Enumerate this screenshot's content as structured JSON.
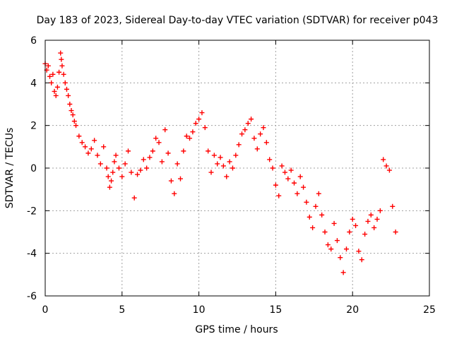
{
  "chart_data": {
    "type": "scatter",
    "title": "Day 183 of 2023, Sidereal Day-to-day VTEC variation (SDTVAR) for receiver p043",
    "xlabel": "GPS time / hours",
    "ylabel": "SDTVAR / TECUs",
    "xlim": [
      0,
      25
    ],
    "ylim": [
      -6,
      6
    ],
    "xticks": [
      0,
      5,
      10,
      15,
      20,
      25
    ],
    "yticks": [
      -6,
      -4,
      -2,
      0,
      2,
      4,
      6
    ],
    "grid": true,
    "marker": "plus",
    "series_color": "#ff0000",
    "series": [
      {
        "name": "SDTVAR",
        "x": [
          0.0,
          0.1,
          0.2,
          0.3,
          0.4,
          0.5,
          0.6,
          0.7,
          0.8,
          0.9,
          1.0,
          1.05,
          1.1,
          1.2,
          1.3,
          1.4,
          1.5,
          1.6,
          1.7,
          1.8,
          1.9,
          2.0,
          2.2,
          2.4,
          2.6,
          2.8,
          3.0,
          3.2,
          3.4,
          3.6,
          3.8,
          4.0,
          4.1,
          4.2,
          4.3,
          4.4,
          4.5,
          4.6,
          4.8,
          5.0,
          5.2,
          5.4,
          5.6,
          5.8,
          6.0,
          6.2,
          6.4,
          6.6,
          6.8,
          7.0,
          7.2,
          7.4,
          7.6,
          7.8,
          8.0,
          8.2,
          8.4,
          8.6,
          8.8,
          9.0,
          9.2,
          9.4,
          9.6,
          9.8,
          10.0,
          10.2,
          10.4,
          10.6,
          10.8,
          11.0,
          11.2,
          11.4,
          11.6,
          11.8,
          12.0,
          12.2,
          12.4,
          12.6,
          12.8,
          13.0,
          13.2,
          13.4,
          13.6,
          13.8,
          14.0,
          14.2,
          14.4,
          14.6,
          14.8,
          15.0,
          15.2,
          15.4,
          15.6,
          15.8,
          16.0,
          16.2,
          16.4,
          16.6,
          16.8,
          17.0,
          17.2,
          17.4,
          17.6,
          17.8,
          18.0,
          18.2,
          18.4,
          18.6,
          18.8,
          19.0,
          19.2,
          19.4,
          19.6,
          19.8,
          20.0,
          20.2,
          20.4,
          20.6,
          20.8,
          21.0,
          21.2,
          21.4,
          21.6,
          21.8,
          22.0,
          22.2,
          22.4,
          22.6,
          22.8
        ],
        "y": [
          4.9,
          4.6,
          4.8,
          4.3,
          4.0,
          4.4,
          3.6,
          3.4,
          3.8,
          4.5,
          5.4,
          5.1,
          4.8,
          4.4,
          4.0,
          3.7,
          3.4,
          3.0,
          2.7,
          2.5,
          2.2,
          2.0,
          1.5,
          1.2,
          1.0,
          0.7,
          0.9,
          1.3,
          0.6,
          0.2,
          1.0,
          0.0,
          -0.4,
          -0.9,
          -0.6,
          -0.2,
          0.3,
          0.6,
          0.0,
          -0.4,
          0.2,
          0.8,
          -0.2,
          -1.4,
          -0.3,
          -0.1,
          0.4,
          0.0,
          0.5,
          0.8,
          1.4,
          1.2,
          0.3,
          1.8,
          0.7,
          -0.6,
          -1.2,
          0.2,
          -0.5,
          0.8,
          1.5,
          1.4,
          1.7,
          2.1,
          2.3,
          2.6,
          1.9,
          0.8,
          -0.2,
          0.6,
          0.2,
          0.5,
          0.1,
          -0.4,
          0.3,
          0.0,
          0.6,
          1.1,
          1.6,
          1.8,
          2.1,
          2.3,
          1.4,
          0.9,
          1.6,
          1.9,
          1.2,
          0.4,
          0.0,
          -0.8,
          -1.3,
          0.1,
          -0.2,
          -0.5,
          -0.1,
          -0.7,
          -1.2,
          -0.4,
          -0.9,
          -1.6,
          -2.3,
          -2.8,
          -1.8,
          -1.2,
          -2.2,
          -3.0,
          -3.6,
          -3.8,
          -2.6,
          -3.4,
          -4.2,
          -4.9,
          -3.8,
          -3.0,
          -2.4,
          -2.7,
          -3.9,
          -4.3,
          -3.1,
          -2.5,
          -2.2,
          -2.8,
          -2.4,
          -2.0,
          0.4,
          0.1,
          -0.1,
          -1.8,
          -3.0
        ]
      }
    ]
  }
}
